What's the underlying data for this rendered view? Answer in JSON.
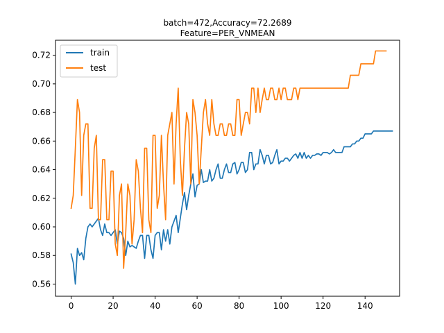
{
  "chart_data": {
    "type": "line",
    "title_line1": "batch=472,Accuracy=72.2689",
    "title_line2": "Feature=PER_VNMEAN",
    "xlabel": "",
    "ylabel": "",
    "xlim": [
      -7.45,
      156.45
    ],
    "ylim": [
      0.5515,
      0.7305
    ],
    "xticks": [
      0,
      20,
      40,
      60,
      80,
      100,
      120,
      140
    ],
    "yticks": [
      0.56,
      0.58,
      0.6,
      0.62,
      0.64,
      0.66,
      0.68,
      0.7,
      0.72
    ],
    "xtick_labels": [
      "0",
      "20",
      "40",
      "60",
      "80",
      "100",
      "120",
      "140"
    ],
    "ytick_labels": [
      "0.56",
      "0.58",
      "0.60",
      "0.62",
      "0.64",
      "0.66",
      "0.68",
      "0.70",
      "0.72"
    ],
    "grid": false,
    "legend_position": "upper-left",
    "series": [
      {
        "name": "train",
        "color": "#1f77b4",
        "values": [
          0.581,
          0.575,
          0.56,
          0.585,
          0.58,
          0.582,
          0.577,
          0.592,
          0.6,
          0.602,
          0.6,
          0.602,
          0.604,
          0.606,
          0.598,
          0.594,
          0.602,
          0.596,
          0.596,
          0.594,
          0.596,
          0.598,
          0.588,
          0.597,
          0.596,
          0.592,
          0.58,
          0.59,
          0.586,
          0.587,
          0.586,
          0.585,
          0.59,
          0.594,
          0.594,
          0.578,
          0.594,
          0.594,
          0.584,
          0.578,
          0.594,
          0.596,
          0.596,
          0.584,
          0.598,
          0.59,
          0.598,
          0.588,
          0.6,
          0.604,
          0.608,
          0.596,
          0.606,
          0.616,
          0.624,
          0.612,
          0.622,
          0.63,
          0.637,
          0.621,
          0.629,
          0.63,
          0.64,
          0.631,
          0.632,
          0.632,
          0.64,
          0.632,
          0.634,
          0.64,
          0.644,
          0.634,
          0.634,
          0.64,
          0.644,
          0.638,
          0.638,
          0.644,
          0.645,
          0.637,
          0.64,
          0.645,
          0.645,
          0.638,
          0.64,
          0.652,
          0.652,
          0.64,
          0.644,
          0.644,
          0.654,
          0.65,
          0.644,
          0.65,
          0.65,
          0.644,
          0.645,
          0.65,
          0.654,
          0.644,
          0.646,
          0.646,
          0.648,
          0.648,
          0.646,
          0.648,
          0.65,
          0.651,
          0.648,
          0.652,
          0.648,
          0.652,
          0.648,
          0.65,
          0.648,
          0.65,
          0.65,
          0.651,
          0.651,
          0.65,
          0.652,
          0.652,
          0.652,
          0.651,
          0.652,
          0.654,
          0.652,
          0.652,
          0.652,
          0.652,
          0.656,
          0.656,
          0.656,
          0.656,
          0.658,
          0.658,
          0.66,
          0.66,
          0.662,
          0.662,
          0.665,
          0.665,
          0.665,
          0.665,
          0.667,
          0.667,
          0.667,
          0.667,
          0.667,
          0.667,
          0.667,
          0.667,
          0.667,
          0.667
        ]
      },
      {
        "name": "test",
        "color": "#ff7f0e",
        "values": [
          0.613,
          0.622,
          0.655,
          0.689,
          0.68,
          0.622,
          0.664,
          0.672,
          0.672,
          0.613,
          0.613,
          0.655,
          0.664,
          0.605,
          0.605,
          0.647,
          0.647,
          0.605,
          0.605,
          0.639,
          0.639,
          0.588,
          0.58,
          0.622,
          0.63,
          0.571,
          0.596,
          0.63,
          0.622,
          0.588,
          0.605,
          0.647,
          0.639,
          0.613,
          0.596,
          0.655,
          0.655,
          0.605,
          0.596,
          0.664,
          0.664,
          0.613,
          0.622,
          0.664,
          0.63,
          0.605,
          0.664,
          0.672,
          0.68,
          0.63,
          0.672,
          0.697,
          0.647,
          0.622,
          0.655,
          0.68,
          0.672,
          0.63,
          0.689,
          0.68,
          0.664,
          0.63,
          0.655,
          0.68,
          0.689,
          0.672,
          0.664,
          0.689,
          0.672,
          0.664,
          0.664,
          0.672,
          0.672,
          0.664,
          0.664,
          0.672,
          0.672,
          0.664,
          0.664,
          0.689,
          0.689,
          0.664,
          0.672,
          0.68,
          0.68,
          0.672,
          0.697,
          0.697,
          0.68,
          0.697,
          0.68,
          0.689,
          0.697,
          0.689,
          0.689,
          0.697,
          0.697,
          0.689,
          0.689,
          0.697,
          0.689,
          0.697,
          0.697,
          0.689,
          0.689,
          0.689,
          0.697,
          0.697,
          0.689,
          0.697,
          0.697,
          0.697,
          0.697,
          0.697,
          0.697,
          0.697,
          0.697,
          0.697,
          0.697,
          0.697,
          0.697,
          0.697,
          0.697,
          0.697,
          0.697,
          0.697,
          0.697,
          0.697,
          0.697,
          0.697,
          0.697,
          0.697,
          0.697,
          0.706,
          0.706,
          0.706,
          0.706,
          0.706,
          0.714,
          0.714,
          0.714,
          0.714,
          0.714,
          0.714,
          0.714,
          0.723,
          0.723,
          0.723,
          0.723,
          0.723,
          0.723
        ]
      }
    ]
  }
}
